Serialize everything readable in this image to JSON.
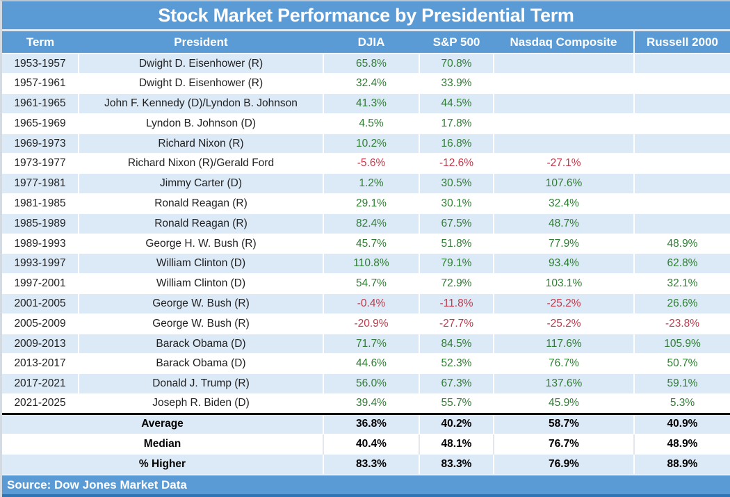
{
  "title": "Stock Market Performance by Presidential Term",
  "chart_data": {
    "type": "table",
    "columns": [
      "Term",
      "President",
      "DJIA",
      "S&P 500",
      "Nasdaq Composite",
      "Russell 2000"
    ],
    "rows": [
      {
        "term": "1953-1957",
        "president": "Dwight D. Eisenhower (R)",
        "values": [
          "65.8%",
          "70.8%",
          "",
          ""
        ]
      },
      {
        "term": "1957-1961",
        "president": "Dwight D. Eisenhower (R)",
        "values": [
          "32.4%",
          "33.9%",
          "",
          ""
        ]
      },
      {
        "term": "1961-1965",
        "president": "John F. Kennedy (D)/Lyndon B. Johnson",
        "values": [
          "41.3%",
          "44.5%",
          "",
          ""
        ]
      },
      {
        "term": "1965-1969",
        "president": "Lyndon B. Johnson (D)",
        "values": [
          "4.5%",
          "17.8%",
          "",
          ""
        ]
      },
      {
        "term": "1969-1973",
        "president": "Richard Nixon (R)",
        "values": [
          "10.2%",
          "16.8%",
          "",
          ""
        ]
      },
      {
        "term": "1973-1977",
        "president": "Richard Nixon (R)/Gerald Ford",
        "values": [
          "-5.6%",
          "-12.6%",
          "-27.1%",
          ""
        ]
      },
      {
        "term": "1977-1981",
        "president": "Jimmy Carter (D)",
        "values": [
          "1.2%",
          "30.5%",
          "107.6%",
          ""
        ]
      },
      {
        "term": "1981-1985",
        "president": "Ronald Reagan (R)",
        "values": [
          "29.1%",
          "30.1%",
          "32.4%",
          ""
        ]
      },
      {
        "term": "1985-1989",
        "president": "Ronald Reagan (R)",
        "values": [
          "82.4%",
          "67.5%",
          "48.7%",
          ""
        ]
      },
      {
        "term": "1989-1993",
        "president": "George H. W. Bush (R)",
        "values": [
          "45.7%",
          "51.8%",
          "77.9%",
          "48.9%"
        ]
      },
      {
        "term": "1993-1997",
        "president": "William Clinton (D)",
        "values": [
          "110.8%",
          "79.1%",
          "93.4%",
          "62.8%"
        ]
      },
      {
        "term": "1997-2001",
        "president": "William Clinton (D)",
        "values": [
          "54.7%",
          "72.9%",
          "103.1%",
          "32.1%"
        ]
      },
      {
        "term": "2001-2005",
        "president": "George W. Bush (R)",
        "values": [
          "-0.4%",
          "-11.8%",
          "-25.2%",
          "26.6%"
        ]
      },
      {
        "term": "2005-2009",
        "president": "George W. Bush (R)",
        "values": [
          "-20.9%",
          "-27.7%",
          "-25.2%",
          "-23.8%"
        ]
      },
      {
        "term": "2009-2013",
        "president": "Barack Obama (D)",
        "values": [
          "71.7%",
          "84.5%",
          "117.6%",
          "105.9%"
        ]
      },
      {
        "term": "2013-2017",
        "president": "Barack Obama (D)",
        "values": [
          "44.6%",
          "52.3%",
          "76.7%",
          "50.7%"
        ]
      },
      {
        "term": "2017-2021",
        "president": "Donald J. Trump (R)",
        "values": [
          "56.0%",
          "67.3%",
          "137.6%",
          "59.1%"
        ]
      },
      {
        "term": "2021-2025",
        "president": "Joseph R. Biden (D)",
        "values": [
          "39.4%",
          "55.7%",
          "45.9%",
          "5.3%"
        ]
      }
    ],
    "summary": [
      {
        "label": "Average",
        "values": [
          "36.8%",
          "40.2%",
          "58.7%",
          "40.9%"
        ]
      },
      {
        "label": "Median",
        "values": [
          "40.4%",
          "48.1%",
          "76.7%",
          "48.9%"
        ]
      },
      {
        "label": "% Higher",
        "values": [
          "83.3%",
          "83.3%",
          "76.9%",
          "88.9%"
        ]
      }
    ],
    "source": "Source: Dow Jones Market Data",
    "legend": {
      "positive_fill": "gain (green)",
      "negative_fill": "loss (red)"
    }
  },
  "colors": {
    "header_blue": "#5B9BD5",
    "zebra_blue": "#DCE9F6",
    "positive_bg": "#CAEAC8",
    "positive_text": "#2F7D33",
    "negative_bg": "#FAC5CC",
    "negative_text": "#C13A4B",
    "summary_text": "#000000",
    "body_text": "#1F1F1F",
    "bottom_edge": "#2E75B6"
  }
}
